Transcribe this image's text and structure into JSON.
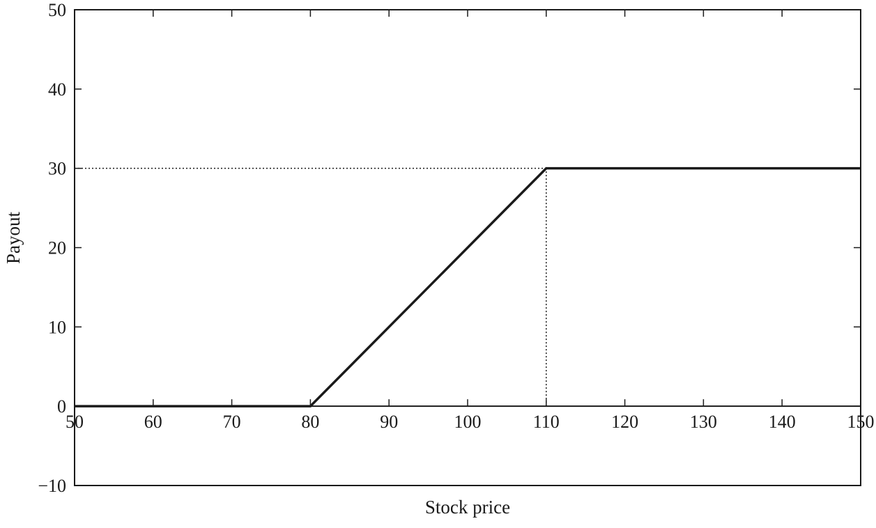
{
  "chart_data": {
    "type": "line",
    "title": "",
    "xlabel": "Stock price",
    "ylabel": "Payout",
    "xlim": [
      50,
      150
    ],
    "ylim": [
      -10,
      50
    ],
    "x_ticks": [
      50,
      60,
      70,
      80,
      90,
      100,
      110,
      120,
      130,
      140,
      150
    ],
    "y_ticks": [
      -10,
      0,
      10,
      20,
      30,
      40,
      50
    ],
    "x_tick_labels": [
      "50",
      "60",
      "70",
      "80",
      "90",
      "100",
      "110",
      "120",
      "130",
      "140",
      "150"
    ],
    "y_tick_labels": [
      "−10",
      "0",
      "10",
      "20",
      "30",
      "40",
      "50"
    ],
    "grid": false,
    "series": [
      {
        "x": [
          50,
          80,
          110,
          150
        ],
        "y": [
          0,
          0,
          30,
          30
        ],
        "color": "#1a1a1a",
        "style": "solid"
      }
    ],
    "reference_lines": [
      {
        "x": [
          50,
          110
        ],
        "y": [
          30,
          30
        ],
        "style": "dotted",
        "color": "#1a1a1a"
      },
      {
        "x": [
          110,
          110
        ],
        "y": [
          0,
          30
        ],
        "style": "dotted",
        "color": "#1a1a1a"
      }
    ]
  }
}
